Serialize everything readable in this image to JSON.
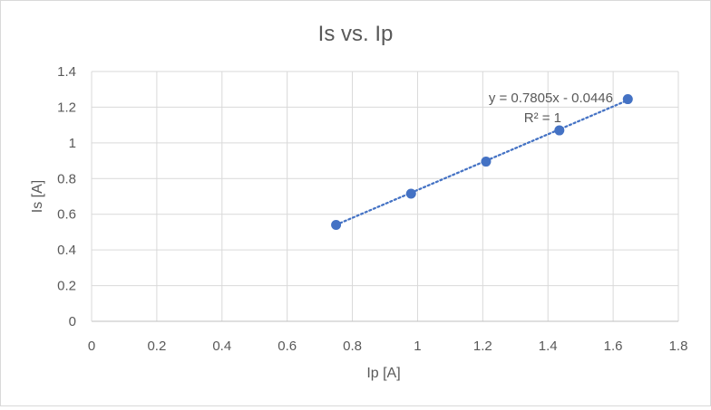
{
  "chart_data": {
    "type": "scatter",
    "title": "Is vs. Ip",
    "xlabel": "Ip [A]",
    "ylabel": "Is [A]",
    "xlim": [
      0,
      1.8
    ],
    "ylim": [
      0,
      1.4
    ],
    "x_ticks": [
      "0",
      "0.2",
      "0.4",
      "0.6",
      "0.8",
      "1",
      "1.2",
      "1.4",
      "1.6",
      "1.8"
    ],
    "y_ticks": [
      "0",
      "0.2",
      "0.4",
      "0.6",
      "0.8",
      "1",
      "1.2",
      "1.4"
    ],
    "grid": true,
    "series": [
      {
        "x": [
          0.75,
          0.98,
          1.21,
          1.435,
          1.645
        ],
        "y": [
          0.54,
          0.715,
          0.895,
          1.07,
          1.245
        ],
        "color": "#4472c4",
        "marker": "circle"
      }
    ],
    "trendline": {
      "type": "linear",
      "slope": 0.7805,
      "intercept": -0.0446,
      "style": "dotted",
      "color": "#4472c4",
      "equation_label": "y = 0.7805x - 0.0446",
      "r2_label": "R² = 1"
    }
  }
}
